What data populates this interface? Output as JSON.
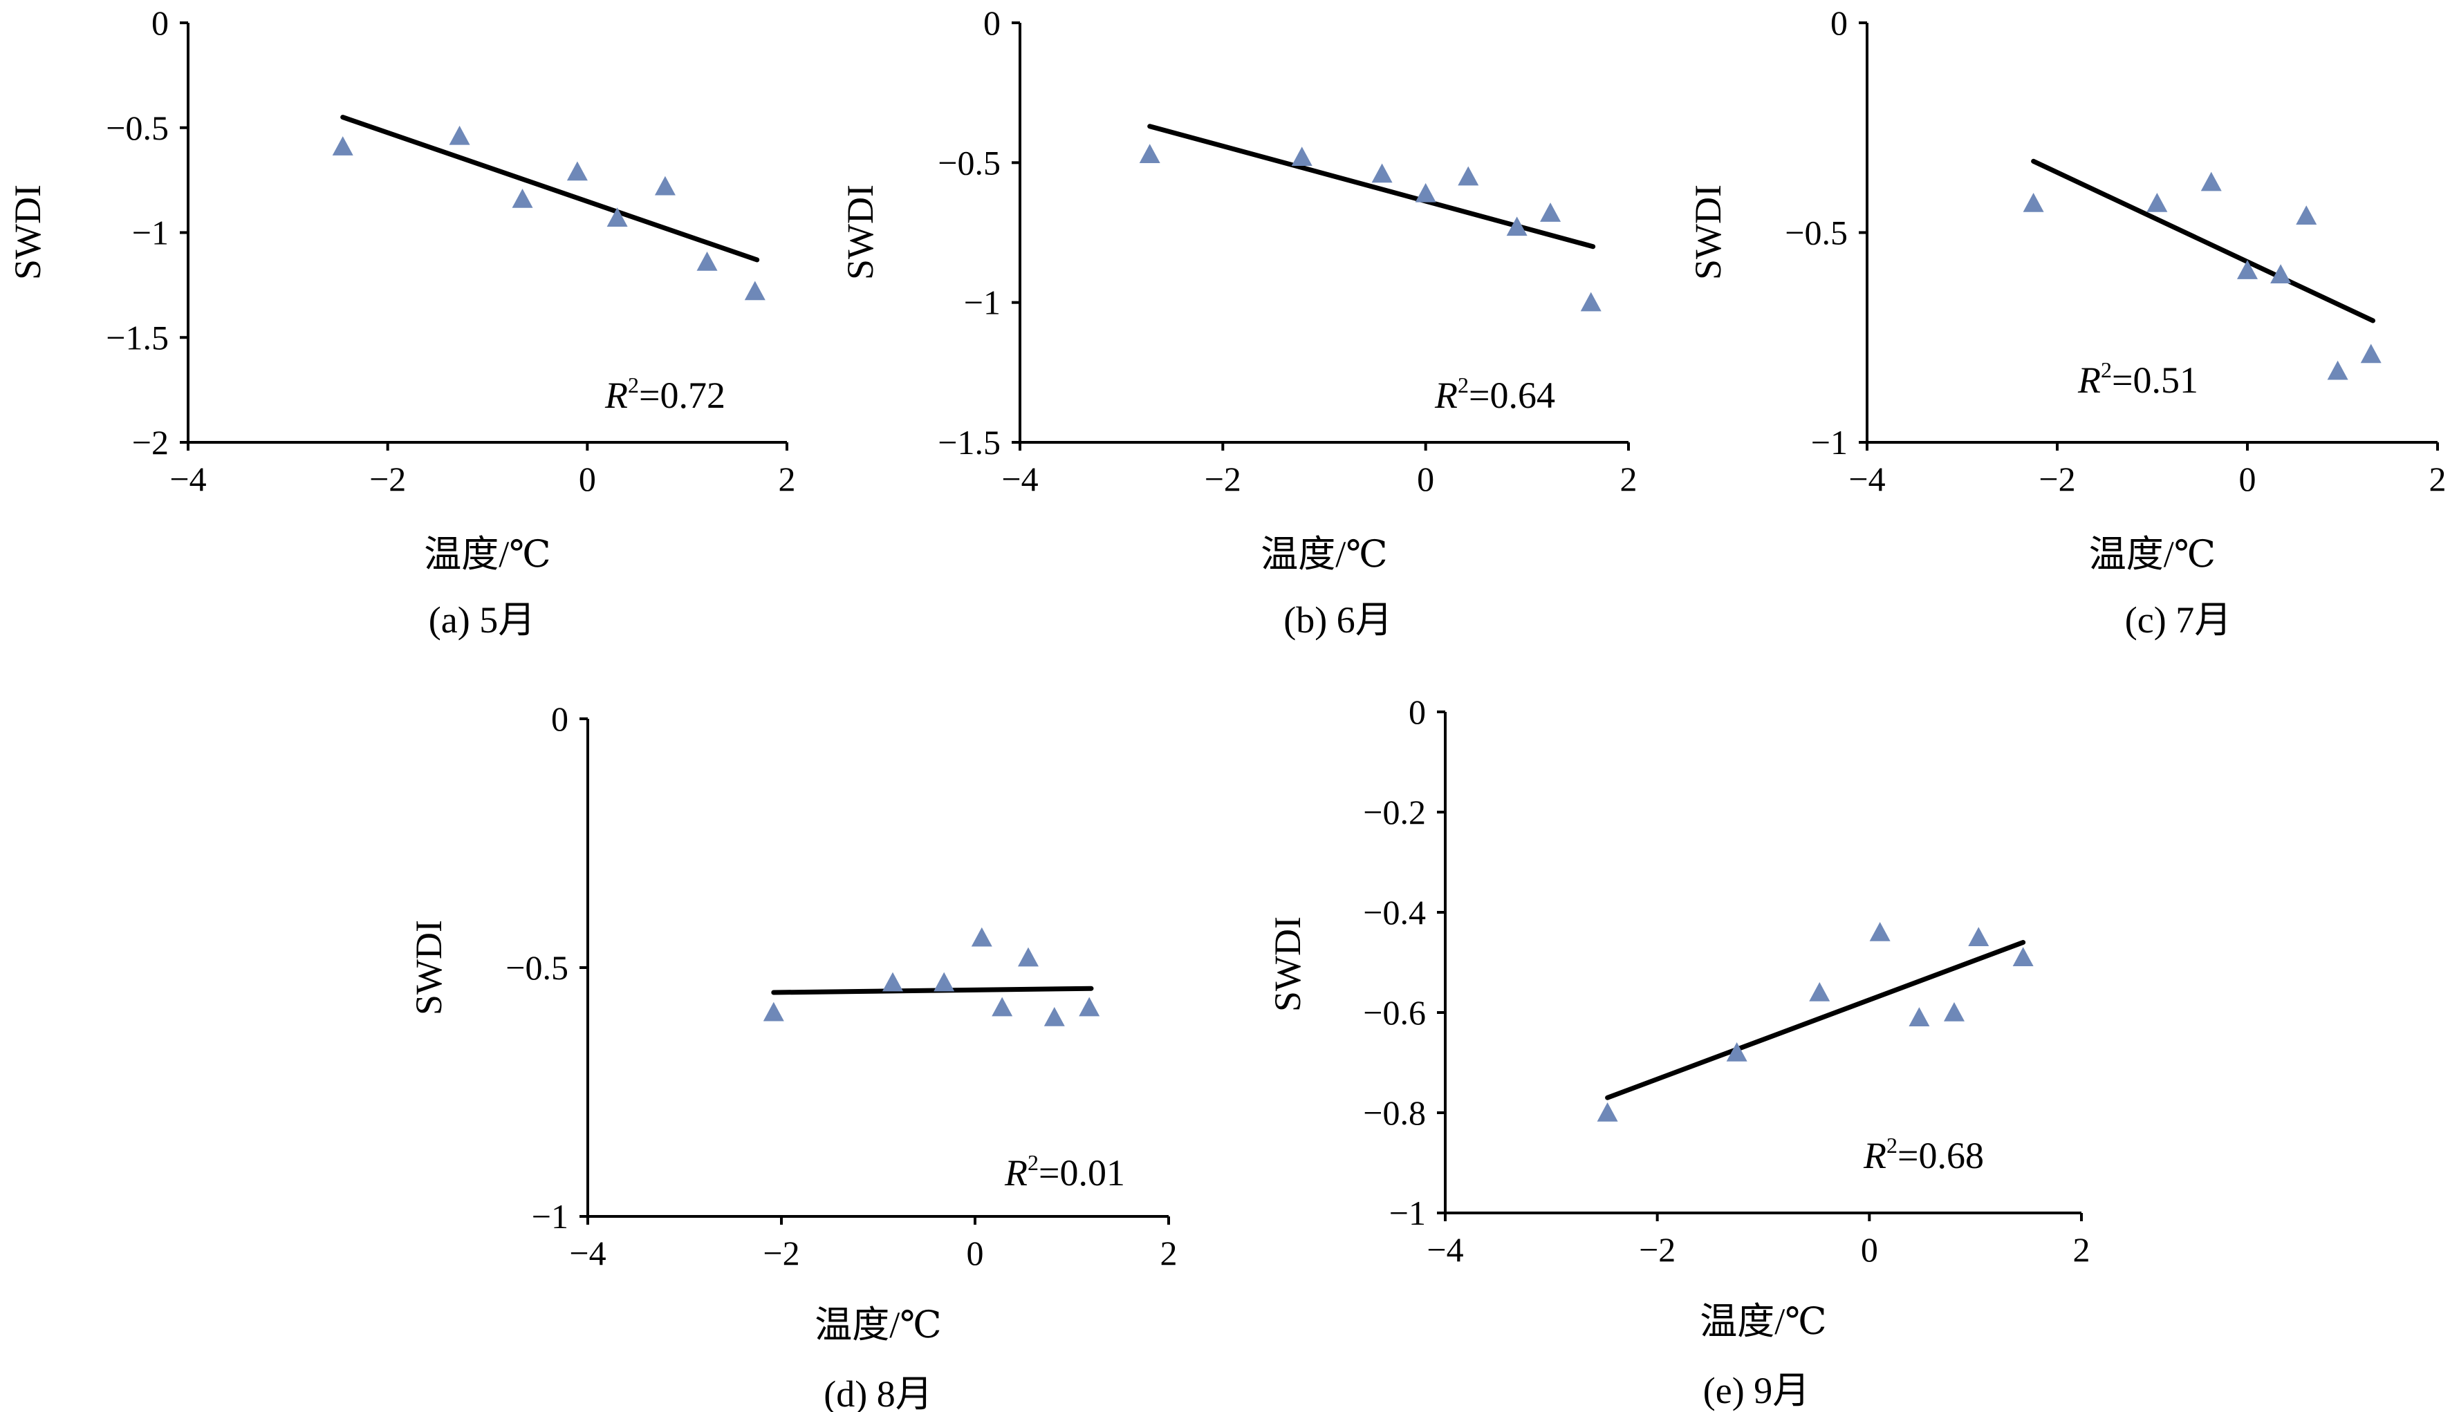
{
  "chart_data": [
    {
      "type": "scatter",
      "panel": "a",
      "caption": "(a) 5月",
      "xlabel": "温度/℃",
      "ylabel": "SWDI",
      "xlim": [
        -4,
        2
      ],
      "ylim": [
        -2,
        0
      ],
      "xticks": [
        -4,
        -2,
        0,
        2
      ],
      "yticks": [
        0,
        -0.5,
        -1,
        -1.5,
        -2
      ],
      "xtick_labels": [
        "−4",
        "−2",
        "0",
        "2"
      ],
      "ytick_labels": [
        "0",
        "−0.5",
        "−1",
        "−1.5",
        "−2"
      ],
      "marker_color": "#6E88B8",
      "points": [
        {
          "x": -2.45,
          "y": -0.59
        },
        {
          "x": -1.28,
          "y": -0.54
        },
        {
          "x": -0.65,
          "y": -0.84
        },
        {
          "x": -0.1,
          "y": -0.71
        },
        {
          "x": 0.3,
          "y": -0.93
        },
        {
          "x": 0.78,
          "y": -0.78
        },
        {
          "x": 1.2,
          "y": -1.14
        },
        {
          "x": 1.68,
          "y": -1.28
        }
      ],
      "trendline": {
        "x1": -2.45,
        "y1": -0.45,
        "x2": 1.7,
        "y2": -1.13
      },
      "r2": {
        "symbol": "R",
        "sup": "2",
        "value": "=0.72"
      }
    },
    {
      "type": "scatter",
      "panel": "b",
      "caption": "(b) 6月",
      "xlabel": "温度/℃",
      "ylabel": "SWDI",
      "xlim": [
        -4,
        2
      ],
      "ylim": [
        -1.5,
        0
      ],
      "xticks": [
        -4,
        -2,
        0,
        2
      ],
      "yticks": [
        0,
        -0.5,
        -1,
        -1.5
      ],
      "xtick_labels": [
        "−4",
        "−2",
        "0",
        "2"
      ],
      "ytick_labels": [
        "0",
        "−0.5",
        "−1",
        "−1.5"
      ],
      "marker_color": "#6E88B8",
      "points": [
        {
          "x": -2.72,
          "y": -0.47
        },
        {
          "x": -1.22,
          "y": -0.48
        },
        {
          "x": -0.43,
          "y": -0.54
        },
        {
          "x": 0.0,
          "y": -0.61
        },
        {
          "x": 0.42,
          "y": -0.55
        },
        {
          "x": 0.9,
          "y": -0.73
        },
        {
          "x": 1.23,
          "y": -0.68
        },
        {
          "x": 1.63,
          "y": -1.0
        }
      ],
      "trendline": {
        "x1": -2.72,
        "y1": -0.37,
        "x2": 1.65,
        "y2": -0.8
      },
      "r2": {
        "symbol": "R",
        "sup": "2",
        "value": "=0.64"
      }
    },
    {
      "type": "scatter",
      "panel": "c",
      "caption": "(c) 7月",
      "xlabel": "温度/℃",
      "ylabel": "SWDI",
      "xlim": [
        -4,
        2
      ],
      "ylim": [
        -1,
        0
      ],
      "xticks": [
        -4,
        -2,
        0,
        2
      ],
      "yticks": [
        0,
        -0.5,
        -1
      ],
      "xtick_labels": [
        "−4",
        "−2",
        "0",
        "2"
      ],
      "ytick_labels": [
        "0",
        "−0.5",
        "−1"
      ],
      "marker_color": "#6E88B8",
      "points": [
        {
          "x": -2.25,
          "y": -0.43
        },
        {
          "x": -0.95,
          "y": -0.43
        },
        {
          "x": -0.38,
          "y": -0.38
        },
        {
          "x": 0.0,
          "y": -0.59
        },
        {
          "x": 0.35,
          "y": -0.6
        },
        {
          "x": 0.62,
          "y": -0.46
        },
        {
          "x": 0.95,
          "y": -0.83
        },
        {
          "x": 1.3,
          "y": -0.79
        }
      ],
      "trendline": {
        "x1": -2.25,
        "y1": -0.33,
        "x2": 1.32,
        "y2": -0.71
      },
      "r2": {
        "symbol": "R",
        "sup": "2",
        "value": "=0.51"
      }
    },
    {
      "type": "scatter",
      "panel": "d",
      "caption": "(d) 8月",
      "xlabel": "温度/℃",
      "ylabel": "SWDI",
      "xlim": [
        -4,
        2
      ],
      "ylim": [
        -1,
        0
      ],
      "xticks": [
        -4,
        -2,
        0,
        2
      ],
      "yticks": [
        0,
        -0.5,
        -1
      ],
      "xtick_labels": [
        "−4",
        "−2",
        "0",
        "2"
      ],
      "ytick_labels": [
        "0",
        "−0.5",
        "−1"
      ],
      "marker_color": "#6E88B8",
      "points": [
        {
          "x": -2.08,
          "y": -0.59
        },
        {
          "x": -0.85,
          "y": -0.53
        },
        {
          "x": -0.32,
          "y": -0.53
        },
        {
          "x": 0.07,
          "y": -0.44
        },
        {
          "x": 0.28,
          "y": -0.58
        },
        {
          "x": 0.55,
          "y": -0.48
        },
        {
          "x": 0.82,
          "y": -0.6
        },
        {
          "x": 1.18,
          "y": -0.58
        }
      ],
      "trendline": {
        "x1": -2.08,
        "y1": -0.55,
        "x2": 1.2,
        "y2": -0.542
      },
      "r2": {
        "symbol": "R",
        "sup": "2",
        "value": "=0.01"
      }
    },
    {
      "type": "scatter",
      "panel": "e",
      "caption": "(e) 9月",
      "xlabel": "温度/℃",
      "ylabel": "SWDI",
      "xlim": [
        -4,
        2
      ],
      "ylim": [
        -1,
        0
      ],
      "xticks": [
        -4,
        -2,
        0,
        2
      ],
      "yticks": [
        0,
        -0.2,
        -0.4,
        -0.6,
        -0.8,
        -1
      ],
      "xtick_labels": [
        "−4",
        "−2",
        "0",
        "2"
      ],
      "ytick_labels": [
        "0",
        "−0.2",
        "−0.4",
        "−0.6",
        "−0.8",
        "−1"
      ],
      "marker_color": "#6E88B8",
      "points": [
        {
          "x": -2.47,
          "y": -0.8
        },
        {
          "x": -1.25,
          "y": -0.68
        },
        {
          "x": -0.47,
          "y": -0.56
        },
        {
          "x": 0.1,
          "y": -0.44
        },
        {
          "x": 0.47,
          "y": -0.61
        },
        {
          "x": 0.8,
          "y": -0.6
        },
        {
          "x": 1.03,
          "y": -0.45
        },
        {
          "x": 1.45,
          "y": -0.49
        }
      ],
      "trendline": {
        "x1": -2.47,
        "y1": -0.77,
        "x2": 1.45,
        "y2": -0.46
      },
      "r2": {
        "symbol": "R",
        "sup": "2",
        "value": "=0.68"
      }
    }
  ]
}
